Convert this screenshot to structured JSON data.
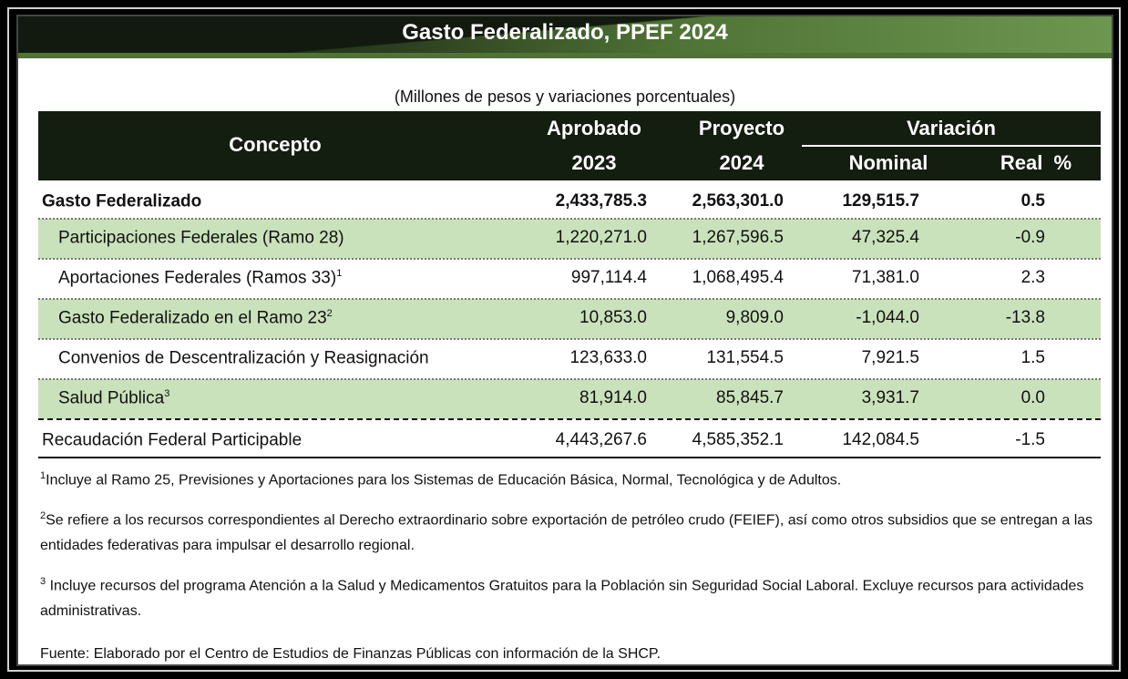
{
  "title": "Gasto Federalizado, PPEF 2024",
  "subtitle": "(Millones de pesos y variaciones porcentuales)",
  "header": {
    "concepto": "Concepto",
    "aprobado": "Aprobado",
    "aprobado_year": "2023",
    "proyecto": "Proyecto",
    "proyecto_year": "2024",
    "variacion": "Variación",
    "nominal": "Nominal",
    "real": "Real  %"
  },
  "rows": [
    {
      "label": "Gasto Federalizado",
      "sup": "",
      "aprobado": "2,433,785.3",
      "proyecto": "2,563,301.0",
      "nominal": "129,515.7",
      "real": "0.5"
    },
    {
      "label": "Participaciones Federales (Ramo 28)",
      "sup": "",
      "aprobado": "1,220,271.0",
      "proyecto": "1,267,596.5",
      "nominal": "47,325.4",
      "real": "-0.9"
    },
    {
      "label": "Aportaciones Federales (Ramos 33)",
      "sup": "1",
      "aprobado": "997,114.4",
      "proyecto": "1,068,495.4",
      "nominal": "71,381.0",
      "real": "2.3"
    },
    {
      "label": "Gasto Federalizado en el Ramo 23",
      "sup": "2",
      "aprobado": "10,853.0",
      "proyecto": "9,809.0",
      "nominal": "-1,044.0",
      "real": "-13.8"
    },
    {
      "label": "Convenios de Descentralización y Reasignación",
      "sup": "",
      "aprobado": "123,633.0",
      "proyecto": "131,554.5",
      "nominal": "7,921.5",
      "real": "1.5"
    },
    {
      "label": "Salud Pública",
      "sup": "3",
      "aprobado": "81,914.0",
      "proyecto": "85,845.7",
      "nominal": "3,931.7",
      "real": "0.0"
    },
    {
      "label": "Recaudación Federal Participable",
      "sup": "",
      "aprobado": "4,443,267.6",
      "proyecto": "4,585,352.1",
      "nominal": "142,084.5",
      "real": "-1.5"
    }
  ],
  "notes": [
    {
      "sup": "1",
      "text": "Incluye al Ramo 25, Previsiones y Aportaciones para los Sistemas de Educación Básica, Normal, Tecnológica y de Adultos."
    },
    {
      "sup": "2",
      "text": "Se refiere a los recursos correspondientes al Derecho extraordinario sobre exportación de petróleo crudo (FEIEF), así como otros subsidios que se entregan a las entidades federativas para impulsar el desarrollo regional."
    },
    {
      "sup": "3",
      "text": " Incluye recursos del programa Atención a la Salud y Medicamentos Gratuitos para la Población sin Seguridad Social Laboral. Excluye recursos para actividades administrativas."
    }
  ],
  "source": "Fuente: Elaborado por el Centro de Estudios de Finanzas Públicas con información de la SHCP.",
  "colors": {
    "header_bg": "#141e10",
    "banner_green": "#4f7336",
    "row_green": "#c9e2bb"
  }
}
